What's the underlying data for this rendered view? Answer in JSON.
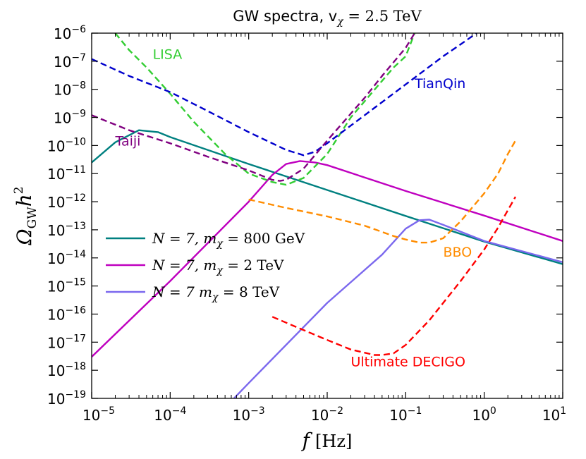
{
  "chart_data": {
    "type": "line",
    "title": "GW spectra, v",
    "title_sub": "χ",
    "title_value": " = 2.5 TeV",
    "xlabel": "f",
    "xlabel_unit": "[Hz]",
    "ylabel": "Ω",
    "ylabel_sub": "GW",
    "ylabel_tail": "h",
    "ylabel_sup": "2",
    "x_scale": "log",
    "y_scale": "log",
    "xlim": [
      1e-05,
      10
    ],
    "ylim": [
      1e-19,
      1e-06
    ],
    "x_ticks": [
      {
        "base": "10",
        "exp": "−5",
        "value": 1e-05
      },
      {
        "base": "10",
        "exp": "−4",
        "value": 0.0001
      },
      {
        "base": "10",
        "exp": "−3",
        "value": 0.001
      },
      {
        "base": "10",
        "exp": "−2",
        "value": 0.01
      },
      {
        "base": "10",
        "exp": "−1",
        "value": 0.1
      },
      {
        "base": "10",
        "exp": "0",
        "value": 1
      },
      {
        "base": "10",
        "exp": "1",
        "value": 10
      }
    ],
    "y_ticks": [
      {
        "base": "10",
        "exp": "−6",
        "value": 1e-06
      },
      {
        "base": "10",
        "exp": "−7",
        "value": 1e-07
      },
      {
        "base": "10",
        "exp": "−8",
        "value": 1e-08
      },
      {
        "base": "10",
        "exp": "−9",
        "value": 1e-09
      },
      {
        "base": "10",
        "exp": "−10",
        "value": 1e-10
      },
      {
        "base": "10",
        "exp": "−11",
        "value": 1e-11
      },
      {
        "base": "10",
        "exp": "−12",
        "value": 1e-12
      },
      {
        "base": "10",
        "exp": "−13",
        "value": 1e-13
      },
      {
        "base": "10",
        "exp": "−14",
        "value": 1e-14
      },
      {
        "base": "10",
        "exp": "−15",
        "value": 1e-15
      },
      {
        "base": "10",
        "exp": "−16",
        "value": 1e-16
      },
      {
        "base": "10",
        "exp": "−17",
        "value": 1e-17
      },
      {
        "base": "10",
        "exp": "−18",
        "value": 1e-18
      },
      {
        "base": "10",
        "exp": "−19",
        "value": 1e-19
      }
    ],
    "grid": false,
    "legend_position": "center-left",
    "series": [
      {
        "name": "N = 7,  m",
        "name_sub": "χ",
        "name_value": " = 800 GeV",
        "kind": "signal",
        "color": "#008080",
        "points": [
          [
            1e-05,
            2.5e-11
          ],
          [
            2e-05,
            1.3e-10
          ],
          [
            4e-05,
            3.5e-10
          ],
          [
            7e-05,
            3e-10
          ],
          [
            0.0001,
            2e-10
          ],
          [
            0.001,
            2.2e-11
          ],
          [
            0.01,
            2.6e-12
          ],
          [
            0.1,
            3.1e-13
          ],
          [
            1,
            3.8e-14
          ],
          [
            10,
            6e-15
          ]
        ]
      },
      {
        "name": "N = 7,  m",
        "name_sub": "χ",
        "name_value": " = 2 TeV",
        "kind": "signal",
        "color": "#bf00bf",
        "points": [
          [
            1e-05,
            3e-18
          ],
          [
            0.0001,
            1.5e-15
          ],
          [
            0.001,
            1e-12
          ],
          [
            0.002,
            9e-12
          ],
          [
            0.003,
            2.2e-11
          ],
          [
            0.0045,
            2.8e-11
          ],
          [
            0.007,
            2.5e-11
          ],
          [
            0.01,
            2e-11
          ],
          [
            0.1,
            2.4e-12
          ],
          [
            1,
            3.2e-13
          ],
          [
            10,
            4e-14
          ]
        ]
      },
      {
        "name": "N = 7 m",
        "name_sub": "χ",
        "name_value": " = 8 TeV",
        "kind": "signal",
        "color": "#7b68ee",
        "points": [
          [
            0.00065,
            1e-19
          ],
          [
            0.001,
            3.5e-19
          ],
          [
            0.01,
            2.5e-16
          ],
          [
            0.05,
            1.3e-14
          ],
          [
            0.1,
            1.1e-13
          ],
          [
            0.15,
            2.2e-13
          ],
          [
            0.2,
            2.3e-13
          ],
          [
            0.3,
            1.5e-13
          ],
          [
            1,
            4e-14
          ],
          [
            10,
            7e-15
          ]
        ]
      },
      {
        "name": "LISA",
        "kind": "sensitivity",
        "color": "#32cd32",
        "points": [
          [
            2e-05,
            1e-06
          ],
          [
            3e-05,
            2.5e-07
          ],
          [
            5e-05,
            6e-08
          ],
          [
            0.0001,
            7e-09
          ],
          [
            0.0002,
            7e-10
          ],
          [
            0.0005,
            5e-11
          ],
          [
            0.001,
            1e-11
          ],
          [
            0.002,
            5e-12
          ],
          [
            0.003,
            4e-12
          ],
          [
            0.005,
            7e-12
          ],
          [
            0.01,
            5e-11
          ],
          [
            0.02,
            1e-09
          ],
          [
            0.05,
            2e-08
          ],
          [
            0.07,
            6e-08
          ],
          [
            0.1,
            1.5e-07
          ],
          [
            0.13,
            1e-06
          ]
        ]
      },
      {
        "name": "TianQin",
        "kind": "sensitivity",
        "color": "#0000cd",
        "points": [
          [
            1e-05,
            1.2e-07
          ],
          [
            3e-05,
            3e-08
          ],
          [
            0.0001,
            8e-09
          ],
          [
            0.0003,
            1.7e-09
          ],
          [
            0.001,
            3e-10
          ],
          [
            0.003,
            7e-11
          ],
          [
            0.005,
            4.5e-11
          ],
          [
            0.007,
            6e-11
          ],
          [
            0.01,
            1.2e-10
          ],
          [
            0.03,
            1.2e-09
          ],
          [
            0.1,
            1.5e-08
          ],
          [
            0.3,
            1.5e-07
          ],
          [
            0.5,
            4e-07
          ],
          [
            0.8,
            1e-06
          ]
        ]
      },
      {
        "name": "Taiji",
        "kind": "sensitivity",
        "color": "#800080",
        "points": [
          [
            1e-05,
            1.2e-09
          ],
          [
            3e-05,
            3.5e-10
          ],
          [
            0.0001,
            1.2e-10
          ],
          [
            0.0003,
            4e-11
          ],
          [
            0.001,
            1.3e-11
          ],
          [
            0.002,
            6e-12
          ],
          [
            0.0025,
            5.5e-12
          ],
          [
            0.003,
            6e-12
          ],
          [
            0.005,
            1.5e-11
          ],
          [
            0.01,
            1.5e-10
          ],
          [
            0.03,
            5e-09
          ],
          [
            0.05,
            3e-08
          ],
          [
            0.1,
            3e-07
          ],
          [
            0.13,
            1e-06
          ]
        ]
      },
      {
        "name": "BBO",
        "kind": "sensitivity",
        "color": "#ff8c00",
        "points": [
          [
            0.001,
            1.2e-12
          ],
          [
            0.003,
            6e-13
          ],
          [
            0.01,
            3e-13
          ],
          [
            0.03,
            1.4e-13
          ],
          [
            0.07,
            6e-14
          ],
          [
            0.1,
            4.5e-14
          ],
          [
            0.15,
            3.5e-14
          ],
          [
            0.2,
            3.5e-14
          ],
          [
            0.3,
            5e-14
          ],
          [
            0.5,
            2e-13
          ],
          [
            1,
            2e-12
          ],
          [
            1.5,
            1e-11
          ],
          [
            2,
            5e-11
          ],
          [
            2.5,
            1.5e-10
          ]
        ]
      },
      {
        "name": "Ultimate DECIGO",
        "kind": "sensitivity",
        "color": "#ff0000",
        "points": [
          [
            0.002,
            8e-17
          ],
          [
            0.004,
            3.5e-17
          ],
          [
            0.01,
            1.2e-17
          ],
          [
            0.02,
            5.5e-18
          ],
          [
            0.04,
            3.5e-18
          ],
          [
            0.05,
            3.5e-18
          ],
          [
            0.07,
            4e-18
          ],
          [
            0.1,
            8e-18
          ],
          [
            0.2,
            6e-17
          ],
          [
            0.5,
            1.5e-15
          ],
          [
            1,
            2e-14
          ],
          [
            1.5,
            1.2e-13
          ],
          [
            2,
            5e-13
          ],
          [
            2.5,
            1.5e-12
          ]
        ]
      }
    ],
    "annotations": [
      {
        "text": "LISA",
        "color": "#32cd32",
        "x": 6e-05,
        "y": 1.2e-07
      },
      {
        "text": "TianQin",
        "color": "#0000cd",
        "x": 0.13,
        "y": 1.1e-08
      },
      {
        "text": "Taiji",
        "color": "#800080",
        "x": 2e-05,
        "y": 1e-10
      },
      {
        "text": "BBO",
        "color": "#ff8c00",
        "x": 0.3,
        "y": 1.1e-14
      },
      {
        "text": "Ultimate DECIGO",
        "color": "#ff0000",
        "x": 0.02,
        "y": 1.4e-18
      }
    ]
  }
}
